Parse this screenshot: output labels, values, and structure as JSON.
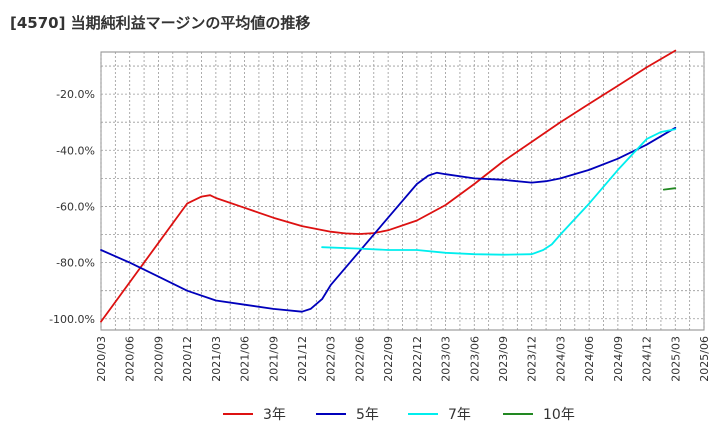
{
  "chart_data": {
    "type": "line",
    "title": "[4570]  当期純利益マージンの平均値の推移",
    "xlabel": "",
    "ylabel": "",
    "ylim": [
      -104,
      -5
    ],
    "yticks": [
      -100,
      -80,
      -60,
      -40,
      -20
    ],
    "ytick_labels": [
      "-100.0%",
      "-80.0%",
      "-60.0%",
      "-40.0%",
      "-20.0%"
    ],
    "x_ticks": [
      "2020/03",
      "2020/06",
      "2020/09",
      "2020/12",
      "2021/03",
      "2021/06",
      "2021/09",
      "2021/12",
      "2022/03",
      "2022/06",
      "2022/09",
      "2022/12",
      "2023/03",
      "2023/06",
      "2023/09",
      "2023/12",
      "2024/03",
      "2024/06",
      "2024/09",
      "2024/12",
      "2025/03",
      "2025/06"
    ],
    "grid": true,
    "legend_position": "bottom",
    "series": [
      {
        "name": "3年",
        "color": "#dd1111",
        "points": [
          [
            0,
            -101
          ],
          [
            3,
            -59
          ],
          [
            3.5,
            -56.5
          ],
          [
            3.8,
            -56
          ],
          [
            4,
            -57
          ],
          [
            5,
            -60.5
          ],
          [
            6,
            -64
          ],
          [
            7,
            -67
          ],
          [
            8,
            -69
          ],
          [
            8.5,
            -69.6
          ],
          [
            9,
            -69.8
          ],
          [
            9.5,
            -69.5
          ],
          [
            10,
            -68.5
          ],
          [
            11,
            -65
          ],
          [
            12,
            -59.5
          ],
          [
            13,
            -52
          ],
          [
            14,
            -44
          ],
          [
            15,
            -37
          ],
          [
            16,
            -30
          ],
          [
            17,
            -23.5
          ],
          [
            18,
            -17
          ],
          [
            19,
            -10.5
          ],
          [
            20,
            -4.5
          ]
        ]
      },
      {
        "name": "5年",
        "color": "#0000bb",
        "points": [
          [
            0,
            -75.5
          ],
          [
            1,
            -80
          ],
          [
            2,
            -85
          ],
          [
            3,
            -90
          ],
          [
            4,
            -93.5
          ],
          [
            5,
            -95
          ],
          [
            6,
            -96.5
          ],
          [
            7,
            -97.5
          ],
          [
            7.3,
            -96.5
          ],
          [
            7.7,
            -93
          ],
          [
            8,
            -88
          ],
          [
            9,
            -76
          ],
          [
            10,
            -64
          ],
          [
            11,
            -52
          ],
          [
            11.4,
            -49
          ],
          [
            11.7,
            -48
          ],
          [
            12,
            -48.5
          ],
          [
            13,
            -50
          ],
          [
            14,
            -50.5
          ],
          [
            15,
            -51.5
          ],
          [
            15.5,
            -51
          ],
          [
            16,
            -50
          ],
          [
            17,
            -47
          ],
          [
            18,
            -43
          ],
          [
            19,
            -38
          ],
          [
            20,
            -32
          ]
        ]
      },
      {
        "name": "7年",
        "color": "#00eeee",
        "points": [
          [
            7.7,
            -74.5
          ],
          [
            9,
            -75
          ],
          [
            10,
            -75.5
          ],
          [
            11,
            -75.5
          ],
          [
            12,
            -76.5
          ],
          [
            13,
            -77
          ],
          [
            14,
            -77.2
          ],
          [
            15,
            -77
          ],
          [
            15.4,
            -75.5
          ],
          [
            15.7,
            -73.5
          ],
          [
            16,
            -70
          ],
          [
            17,
            -59
          ],
          [
            18,
            -47
          ],
          [
            19,
            -36
          ],
          [
            19.5,
            -33.5
          ],
          [
            20,
            -32.5
          ]
        ]
      },
      {
        "name": "10年",
        "color": "#228822",
        "points": [
          [
            19.6,
            -54
          ],
          [
            20,
            -53.5
          ]
        ]
      }
    ]
  }
}
